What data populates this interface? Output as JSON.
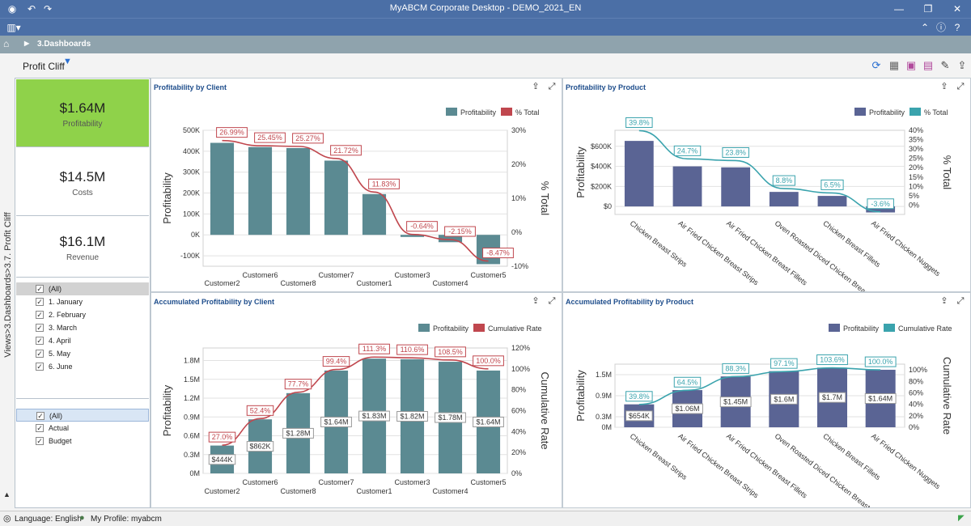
{
  "app": {
    "title": "MyABCM Corporate Desktop - DEMO_2021_EN"
  },
  "breadcrumb": {
    "label": "3.Dashboards"
  },
  "page": {
    "title": "Profit Cliff"
  },
  "side": {
    "vertical_label": "Views>3.Dashboards>3.7. Profit Cliff"
  },
  "kpis": [
    {
      "value": "$1.64M",
      "label": "Profitability",
      "color": "#8fd24a"
    },
    {
      "value": "$14.5M",
      "label": "Costs"
    },
    {
      "value": "$16.1M",
      "label": "Revenue"
    }
  ],
  "filters": {
    "months": [
      "(All)",
      "1. January",
      "2. February",
      "3. March",
      "4. April",
      "5. May",
      "6. June"
    ],
    "scenarios": [
      "(All)",
      "Actual",
      "Budget"
    ]
  },
  "status": {
    "language": "Language: English",
    "profile": "My Profile: myabcm"
  },
  "colors": {
    "client_bar": "#5b8a92",
    "product_bar": "#5a6494",
    "red_line": "#c0474e",
    "teal_line": "#3aa3ad",
    "header": "#4b6fa6"
  },
  "chart_data": [
    {
      "type": "bar",
      "title": "Profitability by Client",
      "legend": [
        "Profitability",
        "% Total"
      ],
      "categories": [
        "Customer2",
        "Customer6",
        "Customer8",
        "Customer7",
        "Customer1",
        "Customer3",
        "Customer4",
        "Customer5"
      ],
      "values": [
        440000,
        420000,
        415000,
        355000,
        195000,
        -10000,
        -35000,
        -140000
      ],
      "line": [
        26.99,
        25.45,
        25.27,
        21.72,
        11.83,
        -0.64,
        -2.15,
        -8.47
      ],
      "line_labels": [
        "26.99%",
        "25.45%",
        "25.27%",
        "21.72%",
        "11.83%",
        "-0.64%",
        "-2.15%",
        "-8.47%"
      ],
      "ylabel": "Profitability",
      "y2label": "% Total",
      "yticks": [
        "500K",
        "400K",
        "300K",
        "200K",
        "100K",
        "0K",
        "-100K"
      ],
      "y2ticks": [
        "30%",
        "20%",
        "10%",
        "0%",
        "-10%"
      ],
      "ylim": [
        -150000,
        500000
      ],
      "y2lim": [
        -10,
        30
      ]
    },
    {
      "type": "bar",
      "title": "Profitability by Product",
      "legend": [
        "Profitability",
        "% Total"
      ],
      "categories": [
        "Chicken Breast Strips",
        "Air Fried Chicken Breast Strips",
        "Air Fried Chicken Breast Fillets",
        "Oven Roasted Diced Chicken Breast",
        "Chicken Breast Fillets",
        "Air Fried Chicken Nuggets"
      ],
      "values": [
        654000,
        400000,
        390000,
        145000,
        105000,
        -60000
      ],
      "line": [
        39.8,
        24.7,
        23.8,
        8.8,
        6.5,
        -3.6
      ],
      "line_labels": [
        "39.8%",
        "24.7%",
        "23.8%",
        "8.8%",
        "6.5%",
        "-3.6%"
      ],
      "ylabel": "Profitability",
      "y2label": "% Total",
      "yticks": [
        "$600K",
        "$400K",
        "$200K",
        "$0"
      ],
      "y2ticks": [
        "40%",
        "35%",
        "30%",
        "25%",
        "20%",
        "15%",
        "10%",
        "5%",
        "0%"
      ],
      "ylim": [
        -80000,
        760000
      ],
      "y2lim": [
        -5,
        40
      ]
    },
    {
      "type": "bar",
      "title": "Accumulated Profitability by Client",
      "legend": [
        "Profitability",
        "Cumulative Rate"
      ],
      "categories": [
        "Customer2",
        "Customer6",
        "Customer8",
        "Customer7",
        "Customer1",
        "Customer3",
        "Customer4",
        "Customer5"
      ],
      "values": [
        444000,
        862000,
        1280000,
        1640000,
        1830000,
        1820000,
        1780000,
        1640000
      ],
      "bar_labels": [
        "$444K",
        "$862K",
        "$1.28M",
        "$1.64M",
        "$1.83M",
        "$1.82M",
        "$1.78M",
        "$1.64M"
      ],
      "line": [
        27.0,
        52.4,
        77.7,
        99.4,
        111.3,
        110.6,
        108.5,
        100.0
      ],
      "line_labels": [
        "27.0%",
        "52.4%",
        "77.7%",
        "99.4%",
        "111.3%",
        "110.6%",
        "108.5%",
        "100.0%"
      ],
      "ylabel": "Profitability",
      "y2label": "Cumulative Rate",
      "yticks": [
        "1.8M",
        "1.5M",
        "1.2M",
        "0.9M",
        "0.6M",
        "0.3M",
        "0M"
      ],
      "y2ticks": [
        "120%",
        "100%",
        "80%",
        "60%",
        "40%",
        "20%",
        "0%"
      ],
      "ylim": [
        0,
        2000000
      ],
      "y2lim": [
        0,
        120
      ]
    },
    {
      "type": "bar",
      "title": "Accumulated Profitability by Product",
      "legend": [
        "Profitability",
        "Cumulative Rate"
      ],
      "categories": [
        "Chicken Breast Strips",
        "Air Fried Chicken Breast Strips",
        "Air Fried Chicken Breast Fillets",
        "Oven Roasted Diced Chicken Breast",
        "Chicken Breast Fillets",
        "Air Fried Chicken Nuggets"
      ],
      "values": [
        654000,
        1060000,
        1450000,
        1600000,
        1700000,
        1640000
      ],
      "bar_labels": [
        "$654K",
        "$1.06M",
        "$1.45M",
        "$1.6M",
        "$1.7M",
        "$1.64M"
      ],
      "line": [
        39.8,
        64.5,
        88.3,
        97.1,
        103.6,
        100.0
      ],
      "line_labels": [
        "39.8%",
        "64.5%",
        "88.3%",
        "97.1%",
        "103.6%",
        "100.0%"
      ],
      "ylabel": "Profitability",
      "y2label": "Cumulative Rate",
      "yticks": [
        "1.5M",
        "0.9M",
        "0.3M",
        "0M"
      ],
      "y2ticks": [
        "100%",
        "80%",
        "60%",
        "40%",
        "20%",
        "0%"
      ],
      "ylim": [
        0,
        1800000
      ],
      "y2lim": [
        0,
        110
      ]
    }
  ]
}
